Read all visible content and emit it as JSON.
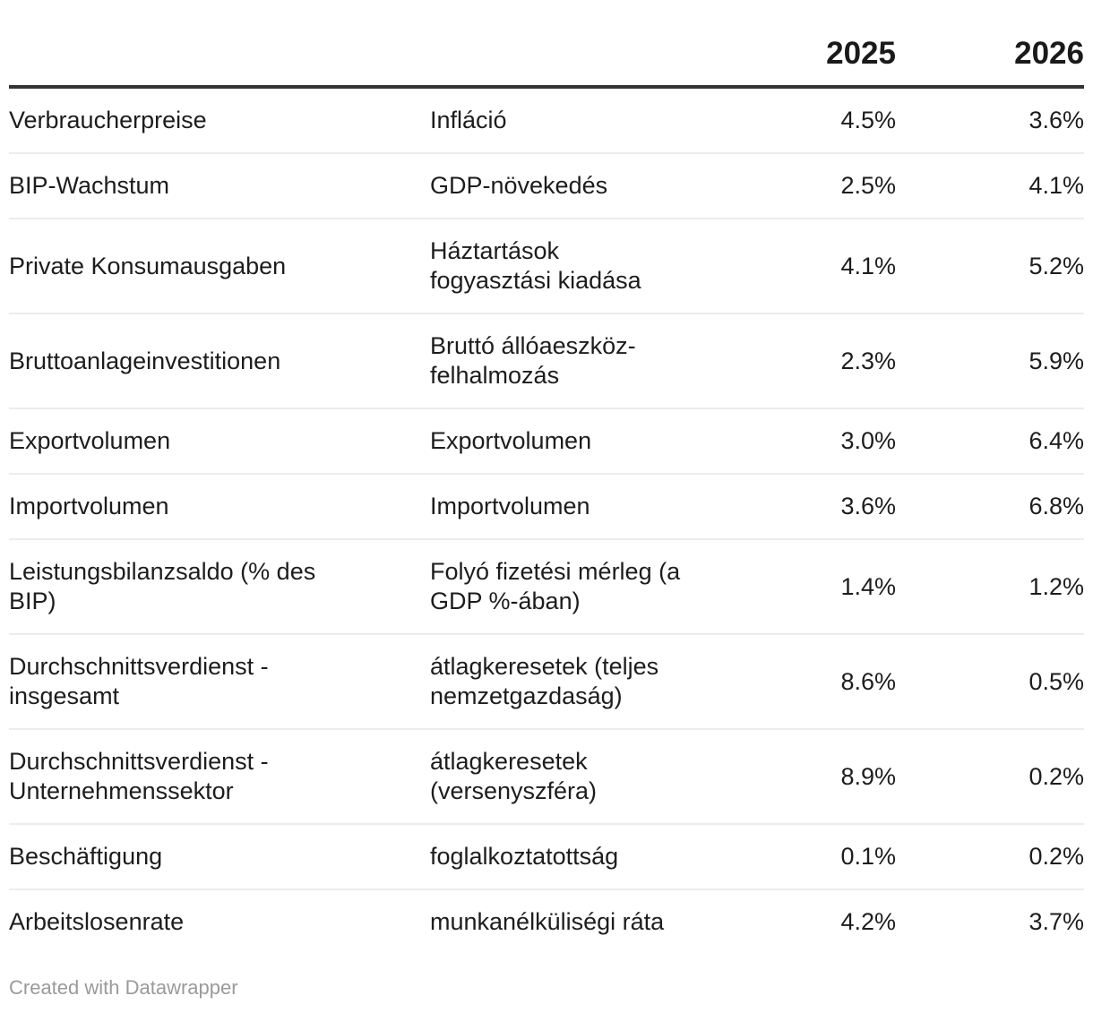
{
  "colors": {
    "text": "#1d1d1d",
    "header_text": "#1a1a1a",
    "header_rule": "#333333",
    "row_separator": "#ececec",
    "footer_text": "#9a9a9a",
    "background": "#ffffff"
  },
  "table": {
    "header": {
      "y2025": "2025",
      "y2026": "2026"
    },
    "rows": [
      {
        "de": "Verbraucherpreise",
        "hu": "Infláció",
        "y2025": "4.5%",
        "y2026": "3.6%"
      },
      {
        "de": "BIP-Wachstum",
        "hu": "GDP-növekedés",
        "y2025": "2.5%",
        "y2026": "4.1%"
      },
      {
        "de": "Private Konsumausgaben",
        "hu": "Háztartások\nfogyasztási kiadása",
        "y2025": "4.1%",
        "y2026": "5.2%"
      },
      {
        "de": "Bruttoanlageinvestitionen",
        "hu": "Bruttó állóaeszköz-\nfelhalmozás",
        "y2025": "2.3%",
        "y2026": "5.9%"
      },
      {
        "de": "Exportvolumen",
        "hu": "Exportvolumen",
        "y2025": "3.0%",
        "y2026": "6.4%"
      },
      {
        "de": "Importvolumen",
        "hu": "Importvolumen",
        "y2025": "3.6%",
        "y2026": "6.8%"
      },
      {
        "de": "Leistungsbilanzsaldo (% des\nBIP)",
        "hu": "Folyó fizetési mérleg (a\nGDP %-ában)",
        "y2025": "1.4%",
        "y2026": "1.2%"
      },
      {
        "de": "Durchschnittsverdienst -\ninsgesamt",
        "hu": "átlagkeresetek (teljes\nnemzetgazdaság)",
        "y2025": "8.6%",
        "y2026": "0.5%"
      },
      {
        "de": "Durchschnittsverdienst -\nUnternehmenssektor",
        "hu": "átlagkeresetek\n(versenyszféra)",
        "y2025": "8.9%",
        "y2026": "0.2%"
      },
      {
        "de": "Beschäftigung",
        "hu": "foglalkoztatottság",
        "y2025": "0.1%",
        "y2026": "0.2%"
      },
      {
        "de": "Arbeitslosenrate",
        "hu": "munkanélküliségi ráta",
        "y2025": "4.2%",
        "y2026": "3.7%"
      }
    ]
  },
  "footer": {
    "attribution": "Created with Datawrapper"
  },
  "chart_data": {
    "type": "table",
    "title": "",
    "columns": [
      "",
      "",
      "2025",
      "2026"
    ],
    "rows": [
      [
        "Verbraucherpreise",
        "Infláció",
        "4.5%",
        "3.6%"
      ],
      [
        "BIP-Wachstum",
        "GDP-növekedés",
        "2.5%",
        "4.1%"
      ],
      [
        "Private Konsumausgaben",
        "Háztartások fogyasztási kiadása",
        "4.1%",
        "5.2%"
      ],
      [
        "Bruttoanlageinvestitionen",
        "Bruttó állóaeszköz-felhalmozás",
        "2.3%",
        "5.9%"
      ],
      [
        "Exportvolumen",
        "Exportvolumen",
        "3.0%",
        "6.4%"
      ],
      [
        "Importvolumen",
        "Importvolumen",
        "3.6%",
        "6.8%"
      ],
      [
        "Leistungsbilanzsaldo (% des BIP)",
        "Folyó fizetési mérleg (a GDP %-ában)",
        "1.4%",
        "1.2%"
      ],
      [
        "Durchschnittsverdienst - insgesamt",
        "átlagkeresetek (teljes nemzetgazdaság)",
        "8.6%",
        "0.5%"
      ],
      [
        "Durchschnittsverdienst - Unternehmenssektor",
        "átlagkeresetek (versenyszféra)",
        "8.9%",
        "0.2%"
      ],
      [
        "Beschäftigung",
        "foglalkoztatottság",
        "0.1%",
        "0.2%"
      ],
      [
        "Arbeitslosenrate",
        "munkanélküliségi ráta",
        "4.2%",
        "3.7%"
      ]
    ],
    "notes": "Values are percentages; numeric columns 2025 and 2026 are right-aligned; first two columns are German and Hungarian indicator names."
  }
}
